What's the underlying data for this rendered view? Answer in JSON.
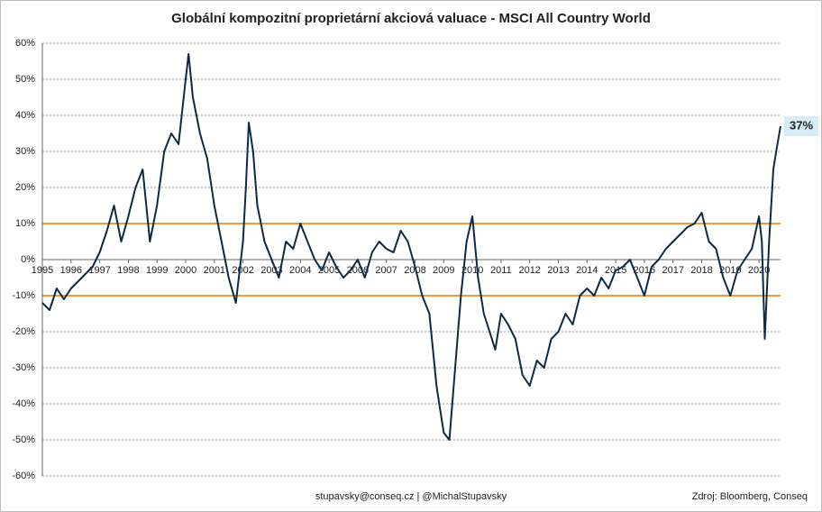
{
  "chart_data": {
    "type": "line",
    "title": "Globální kompozitní proprietární akciová valuace - MSCI All Country World",
    "footer_center": "stupavsky@conseq.cz  |  @MichalStupavsky",
    "footer_right": "Zdroj: Bloomberg, Conseq",
    "end_label": "37%",
    "xlim": [
      1995,
      2020.75
    ],
    "xticks": [
      1995,
      1996,
      1997,
      1998,
      1999,
      2000,
      2001,
      2002,
      2003,
      2004,
      2005,
      2006,
      2007,
      2008,
      2009,
      2010,
      2011,
      2012,
      2013,
      2014,
      2015,
      2016,
      2017,
      2018,
      2019,
      2020
    ],
    "ylim": [
      -60,
      60
    ],
    "yticks": [
      {
        "value": -60,
        "label": "-60%"
      },
      {
        "value": -50,
        "label": "-50%"
      },
      {
        "value": -40,
        "label": "-40%"
      },
      {
        "value": -30,
        "label": "-30%"
      },
      {
        "value": -20,
        "label": "-20%"
      },
      {
        "value": -10,
        "label": "-10%"
      },
      {
        "value": 0,
        "label": "0%"
      },
      {
        "value": 10,
        "label": "10%"
      },
      {
        "value": 20,
        "label": "20%"
      },
      {
        "value": 30,
        "label": "30%"
      },
      {
        "value": 40,
        "label": "40%"
      },
      {
        "value": 50,
        "label": "50%"
      },
      {
        "value": 60,
        "label": "60%"
      }
    ],
    "grid": true,
    "reference_lines": {
      "values": [
        10,
        -10
      ],
      "color": "#f39a2b"
    },
    "series": [
      {
        "color": "#0d2a45",
        "x": [
          1995.0,
          1995.25,
          1995.5,
          1995.75,
          1996.0,
          1996.25,
          1996.5,
          1996.75,
          1997.0,
          1997.25,
          1997.5,
          1997.75,
          1998.0,
          1998.25,
          1998.5,
          1998.75,
          1999.0,
          1999.25,
          1999.5,
          1999.75,
          2000.0,
          2000.1,
          2000.25,
          2000.5,
          2000.75,
          2001.0,
          2001.25,
          2001.5,
          2001.75,
          2002.0,
          2002.1,
          2002.2,
          2002.35,
          2002.5,
          2002.75,
          2003.0,
          2003.25,
          2003.5,
          2003.75,
          2004.0,
          2004.25,
          2004.5,
          2004.75,
          2005.0,
          2005.25,
          2005.5,
          2005.75,
          2006.0,
          2006.25,
          2006.5,
          2006.75,
          2007.0,
          2007.25,
          2007.5,
          2007.75,
          2008.0,
          2008.25,
          2008.5,
          2008.75,
          2009.0,
          2009.2,
          2009.4,
          2009.6,
          2009.8,
          2010.0,
          2010.2,
          2010.4,
          2010.6,
          2010.8,
          2011.0,
          2011.25,
          2011.5,
          2011.75,
          2012.0,
          2012.25,
          2012.5,
          2012.75,
          2013.0,
          2013.25,
          2013.5,
          2013.75,
          2014.0,
          2014.25,
          2014.5,
          2014.75,
          2015.0,
          2015.25,
          2015.5,
          2015.75,
          2016.0,
          2016.25,
          2016.5,
          2016.75,
          2017.0,
          2017.25,
          2017.5,
          2017.75,
          2018.0,
          2018.25,
          2018.5,
          2018.75,
          2019.0,
          2019.25,
          2019.5,
          2019.75,
          2020.0,
          2020.1,
          2020.2,
          2020.35,
          2020.5,
          2020.6,
          2020.75
        ],
        "values": [
          -12,
          -14,
          -8,
          -11,
          -8,
          -6,
          -4,
          -2,
          2,
          8,
          15,
          5,
          12,
          20,
          25,
          5,
          15,
          30,
          35,
          32,
          50,
          57,
          45,
          35,
          28,
          15,
          5,
          -5,
          -12,
          5,
          20,
          38,
          30,
          15,
          5,
          0,
          -5,
          5,
          3,
          10,
          5,
          0,
          -3,
          2,
          -2,
          -5,
          -3,
          0,
          -5,
          2,
          5,
          3,
          2,
          8,
          5,
          -2,
          -10,
          -15,
          -35,
          -48,
          -50,
          -30,
          -10,
          5,
          12,
          -5,
          -15,
          -20,
          -25,
          -15,
          -18,
          -22,
          -32,
          -35,
          -28,
          -30,
          -22,
          -20,
          -15,
          -18,
          -10,
          -8,
          -10,
          -5,
          -8,
          -3,
          -2,
          0,
          -5,
          -10,
          -2,
          0,
          3,
          5,
          7,
          9,
          10,
          13,
          5,
          3,
          -5,
          -10,
          -3,
          0,
          3,
          12,
          5,
          -22,
          5,
          25,
          30,
          37
        ]
      }
    ]
  }
}
